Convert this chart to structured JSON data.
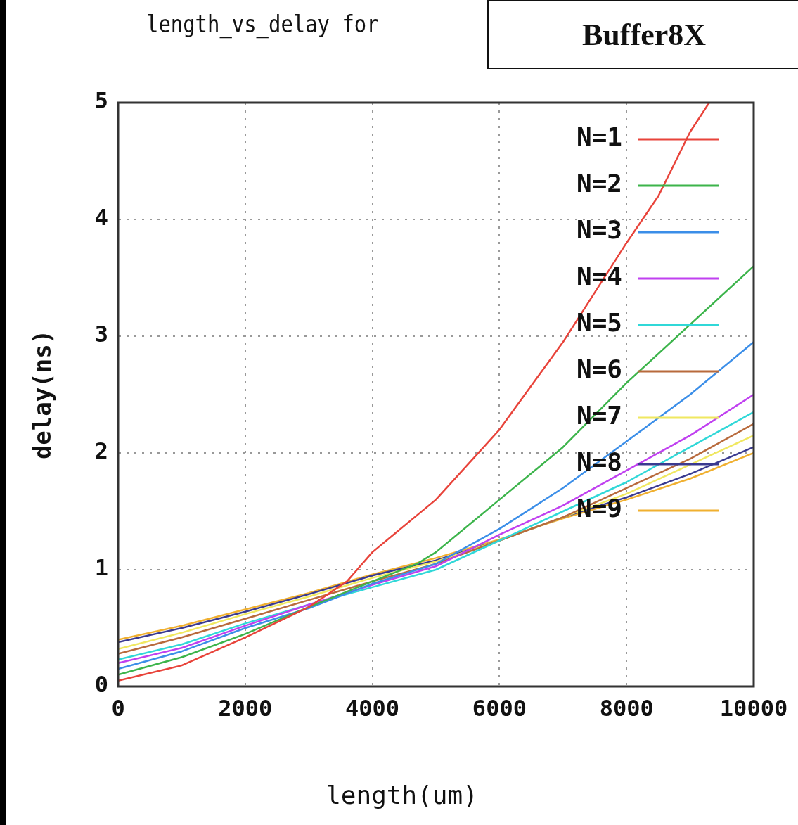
{
  "chart_data": {
    "type": "line",
    "title": "length_vs_delay for",
    "subtitle": "Buffer8X",
    "xlabel": "length(um)",
    "ylabel": "delay(ns)",
    "xlim": [
      0,
      10000
    ],
    "xticks": [
      0,
      2000,
      4000,
      6000,
      8000,
      10000
    ],
    "ylim": [
      0,
      5
    ],
    "yticks": [
      0,
      1,
      2,
      3,
      4,
      5
    ],
    "grid": true,
    "legend": "top right",
    "marker": "none",
    "line_style": "solid",
    "series": [
      {
        "name": "N=1",
        "color": "#e8433a",
        "x": [
          0,
          1000,
          2000,
          3000,
          3600,
          4000,
          5000,
          6000,
          7000,
          8000,
          8500,
          9000,
          9300
        ],
        "values": [
          0.05,
          0.18,
          0.42,
          0.68,
          0.9,
          1.15,
          1.6,
          2.2,
          2.95,
          3.8,
          4.2,
          4.75,
          5.0
        ]
      },
      {
        "name": "N=2",
        "color": "#3cb44b",
        "x": [
          0,
          1000,
          2000,
          3000,
          4000,
          4700,
          5000,
          6000,
          7000,
          8000,
          9000,
          10000
        ],
        "values": [
          0.1,
          0.25,
          0.45,
          0.68,
          0.9,
          1.05,
          1.15,
          1.6,
          2.05,
          2.6,
          3.1,
          3.6
        ]
      },
      {
        "name": "N=3",
        "color": "#3b8ee8",
        "x": [
          0,
          1000,
          2000,
          3000,
          4000,
          5000,
          6000,
          7000,
          8000,
          9000,
          10000
        ],
        "values": [
          0.15,
          0.3,
          0.5,
          0.67,
          0.88,
          1.05,
          1.35,
          1.7,
          2.1,
          2.5,
          2.95
        ]
      },
      {
        "name": "N=4",
        "color": "#c040f0",
        "x": [
          0,
          1000,
          2000,
          3000,
          4000,
          5000,
          6000,
          7000,
          8000,
          9000,
          10000
        ],
        "values": [
          0.2,
          0.33,
          0.52,
          0.7,
          0.87,
          1.03,
          1.3,
          1.55,
          1.85,
          2.15,
          2.5
        ]
      },
      {
        "name": "N=5",
        "color": "#30d8d8",
        "x": [
          0,
          1000,
          2000,
          3000,
          4000,
          5000,
          6000,
          7000,
          8000,
          9000,
          10000
        ],
        "values": [
          0.23,
          0.36,
          0.54,
          0.7,
          0.85,
          1.0,
          1.25,
          1.5,
          1.75,
          2.05,
          2.35
        ]
      },
      {
        "name": "N=6",
        "color": "#b86a3c",
        "x": [
          0,
          1000,
          2000,
          3000,
          4000,
          5000,
          6000,
          7000,
          8000,
          9000,
          10000
        ],
        "values": [
          0.28,
          0.42,
          0.58,
          0.74,
          0.9,
          1.05,
          1.25,
          1.45,
          1.7,
          1.95,
          2.25
        ]
      },
      {
        "name": "N=7",
        "color": "#f0e860",
        "x": [
          0,
          1000,
          2000,
          3000,
          4000,
          5000,
          6000,
          7000,
          8000,
          9000,
          10000
        ],
        "values": [
          0.32,
          0.46,
          0.62,
          0.77,
          0.93,
          1.07,
          1.25,
          1.45,
          1.65,
          1.9,
          2.15
        ]
      },
      {
        "name": "N=8",
        "color": "#3a3a90",
        "x": [
          0,
          1000,
          2000,
          3000,
          4000,
          5000,
          6000,
          7000,
          8000,
          9000,
          10000
        ],
        "values": [
          0.38,
          0.5,
          0.64,
          0.79,
          0.95,
          1.08,
          1.25,
          1.45,
          1.62,
          1.82,
          2.05
        ]
      },
      {
        "name": "N=9",
        "color": "#f0b030",
        "x": [
          0,
          1000,
          2000,
          3000,
          4000,
          5000,
          6000,
          7000,
          8000,
          9000,
          10000
        ],
        "values": [
          0.4,
          0.52,
          0.66,
          0.8,
          0.96,
          1.1,
          1.26,
          1.44,
          1.6,
          1.78,
          2.0
        ]
      }
    ]
  }
}
